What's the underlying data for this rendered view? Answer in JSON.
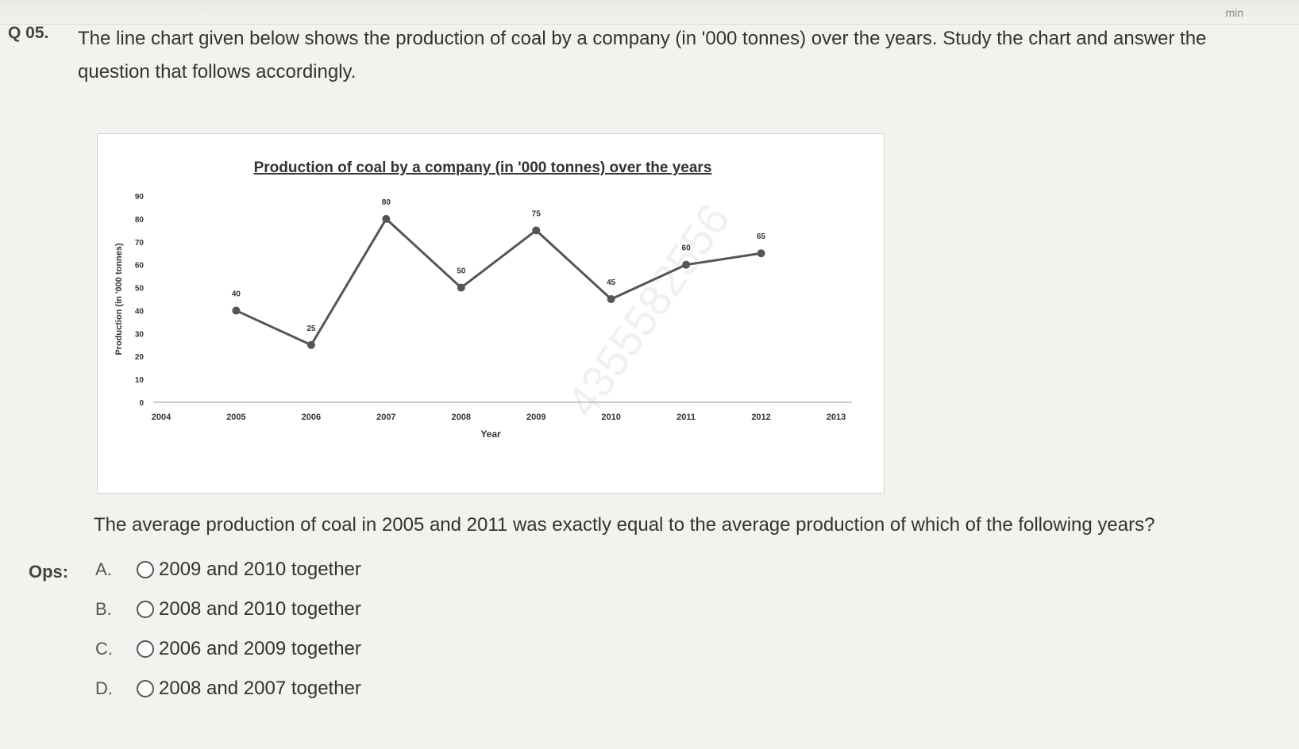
{
  "header": {
    "timer_text": "min"
  },
  "question": {
    "number": "Q 05.",
    "intro": "The line chart given below shows the production of coal by a company (in '000 tonnes) over the years. Study the chart and answer the question that follows accordingly.",
    "prompt": "The average production of coal in 2005 and 2011 was exactly equal to the average production of which of the following years?"
  },
  "options": {
    "label": "Ops:",
    "items": [
      {
        "letter": "A.",
        "text": "2009 and 2010 together"
      },
      {
        "letter": "B.",
        "text": "2008 and 2010 together"
      },
      {
        "letter": "C.",
        "text": "2006 and 2009 together"
      },
      {
        "letter": "D.",
        "text": "2008 and 2007 together"
      }
    ]
  },
  "watermark": "4355582556",
  "chart_data": {
    "type": "line",
    "title": "Production of coal by a company (in '000 tonnes) over the years",
    "xlabel": "Year",
    "ylabel": "Production (in '000 tonnes)",
    "x_ticks": [
      "2004",
      "2005",
      "2006",
      "2007",
      "2008",
      "2009",
      "2010",
      "2011",
      "2012",
      "2013"
    ],
    "y_ticks": [
      0,
      10,
      20,
      30,
      40,
      50,
      60,
      70,
      80,
      90
    ],
    "ylim": [
      0,
      90
    ],
    "x": [
      "2005",
      "2006",
      "2007",
      "2008",
      "2009",
      "2010",
      "2011",
      "2012"
    ],
    "values": [
      40,
      25,
      80,
      50,
      75,
      45,
      60,
      65
    ],
    "colors": {
      "line": "#555555"
    },
    "grid": false
  }
}
